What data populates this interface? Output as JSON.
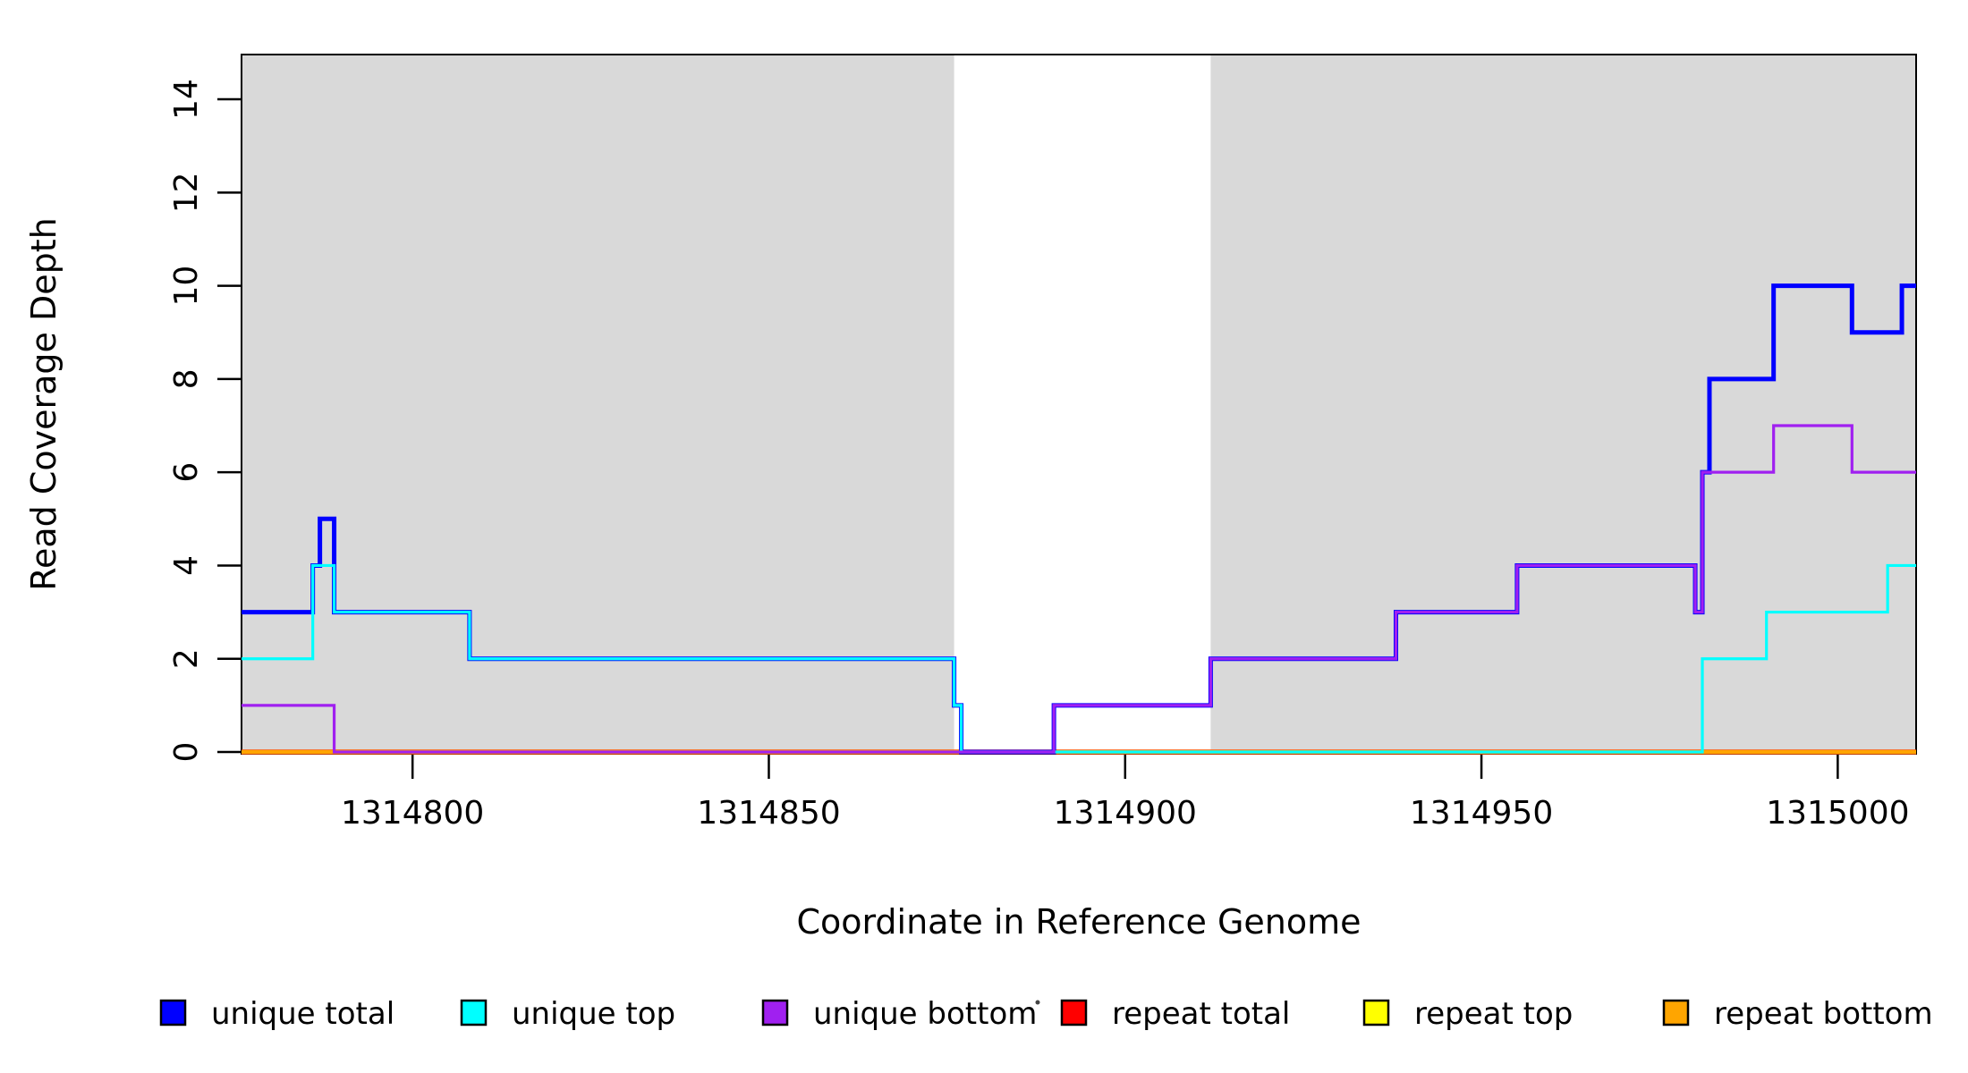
{
  "chart": {
    "x_title": "Coordinate in Reference Genome",
    "y_title": "Read Coverage Depth"
  },
  "chart_data": {
    "type": "line",
    "subtype": "step-function-coverage",
    "title": "",
    "xlabel": "Coordinate in Reference Genome",
    "ylabel": "Read Coverage Depth",
    "x_axis": {
      "range": [
        1314776,
        1315011
      ],
      "ticks": [
        1314800,
        1314850,
        1314900,
        1314950,
        1315000
      ]
    },
    "y_axis": {
      "range": [
        0,
        15
      ],
      "ticks": [
        0,
        2,
        4,
        6,
        8,
        10,
        12,
        14
      ]
    },
    "colors": {
      "region_fill": "#D9D9D9",
      "axis": "#000000",
      "background": "#FFFFFF"
    },
    "shaded_regions": [
      [
        1314776,
        1314876
      ],
      [
        1314912,
        1315011
      ]
    ],
    "white_gap_region": [
      1314876,
      1314912
    ],
    "series": [
      {
        "name": "repeat total",
        "color": "#FF0000",
        "width": 5.5,
        "steps": [
          [
            1314776,
            0
          ]
        ]
      },
      {
        "name": "repeat top",
        "color": "#FFFF00",
        "width": 4.6,
        "steps": [
          [
            1314776,
            0
          ]
        ]
      },
      {
        "name": "repeat bottom",
        "color": "#FFA500",
        "width": 4.0,
        "steps": [
          [
            1314776,
            0
          ]
        ]
      },
      {
        "name": "unique total",
        "color": "#0000FF",
        "width": 5.0,
        "steps": [
          [
            1314776,
            3
          ],
          [
            1314786,
            4
          ],
          [
            1314787,
            5
          ],
          [
            1314789,
            3
          ],
          [
            1314808,
            2
          ],
          [
            1314876,
            1
          ],
          [
            1314877,
            0
          ],
          [
            1314890,
            1
          ],
          [
            1314912,
            2
          ],
          [
            1314938,
            3
          ],
          [
            1314955,
            4
          ],
          [
            1314980,
            3
          ],
          [
            1314981,
            6
          ],
          [
            1314982,
            8
          ],
          [
            1314991,
            10
          ],
          [
            1315002,
            9
          ],
          [
            1315009,
            10
          ]
        ]
      },
      {
        "name": "unique top",
        "color": "#00FFFF",
        "width": 3.2,
        "steps": [
          [
            1314776,
            2
          ],
          [
            1314786,
            4
          ],
          [
            1314789,
            3
          ],
          [
            1314808,
            2
          ],
          [
            1314876,
            1
          ],
          [
            1314877,
            0
          ],
          [
            1314981,
            2
          ],
          [
            1314990,
            3
          ],
          [
            1315007,
            4
          ]
        ]
      },
      {
        "name": "unique bottom",
        "color": "#A020F0",
        "width": 3.2,
        "steps": [
          [
            1314776,
            1
          ],
          [
            1314789,
            0
          ],
          [
            1314890,
            1
          ],
          [
            1314912,
            2
          ],
          [
            1314938,
            3
          ],
          [
            1314955,
            4
          ],
          [
            1314980,
            3
          ],
          [
            1314981,
            6
          ],
          [
            1314991,
            7
          ],
          [
            1315002,
            6
          ]
        ]
      }
    ],
    "legend": [
      {
        "label": "unique total",
        "color": "#0000FF"
      },
      {
        "label": "unique top",
        "color": "#00FFFF"
      },
      {
        "label": "unique bottom",
        "color": "#A020F0"
      },
      {
        "label": "repeat total",
        "color": "#FF0000"
      },
      {
        "label": "repeat top",
        "color": "#FFFF00"
      },
      {
        "label": "repeat bottom",
        "color": "#FFA500"
      }
    ]
  }
}
